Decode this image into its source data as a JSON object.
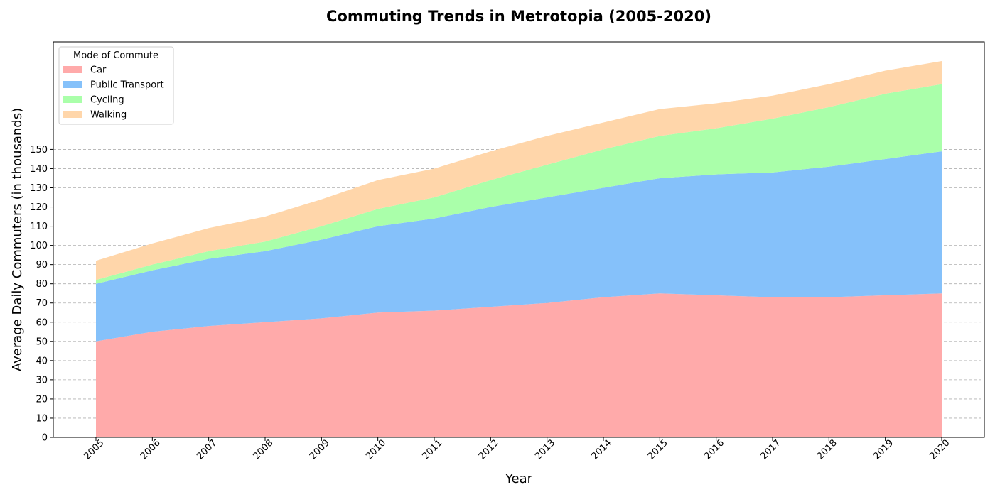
{
  "chart_data": {
    "type": "area",
    "stacked": true,
    "title": "Commuting Trends in Metrotopia (2005-2020)",
    "xlabel": "Year",
    "ylabel": "Average Daily Commuters (in thousands)",
    "categories": [
      "2005",
      "2006",
      "2007",
      "2008",
      "2009",
      "2010",
      "2011",
      "2012",
      "2013",
      "2014",
      "2015",
      "2016",
      "2017",
      "2018",
      "2019",
      "2020"
    ],
    "yticks": [
      0,
      10,
      20,
      30,
      40,
      50,
      60,
      70,
      80,
      90,
      100,
      110,
      120,
      130,
      140,
      150
    ],
    "ylim": [
      0,
      206
    ],
    "grid": "horizontal dashed",
    "legend": {
      "title": "Mode of Commute",
      "placement": "top-left"
    },
    "series": [
      {
        "name": "Car",
        "color": "#ffaaaa",
        "values": [
          50,
          55,
          58,
          60,
          62,
          65,
          66,
          68,
          70,
          73,
          75,
          74,
          73,
          73,
          74,
          75
        ]
      },
      {
        "name": "Public Transport",
        "color": "#85c1fa",
        "values": [
          30,
          32,
          35,
          37,
          41,
          45,
          48,
          52,
          55,
          57,
          60,
          63,
          65,
          68,
          71,
          74
        ]
      },
      {
        "name": "Cycling",
        "color": "#aaffaa",
        "values": [
          2,
          3,
          4,
          5,
          7,
          9,
          11,
          14,
          17,
          20,
          22,
          24,
          28,
          31,
          34,
          35
        ]
      },
      {
        "name": "Walking",
        "color": "#ffd6aa",
        "values": [
          10,
          11,
          12,
          13,
          14,
          15,
          15,
          15,
          15,
          14,
          14,
          13,
          12,
          12,
          12,
          12
        ]
      }
    ]
  }
}
